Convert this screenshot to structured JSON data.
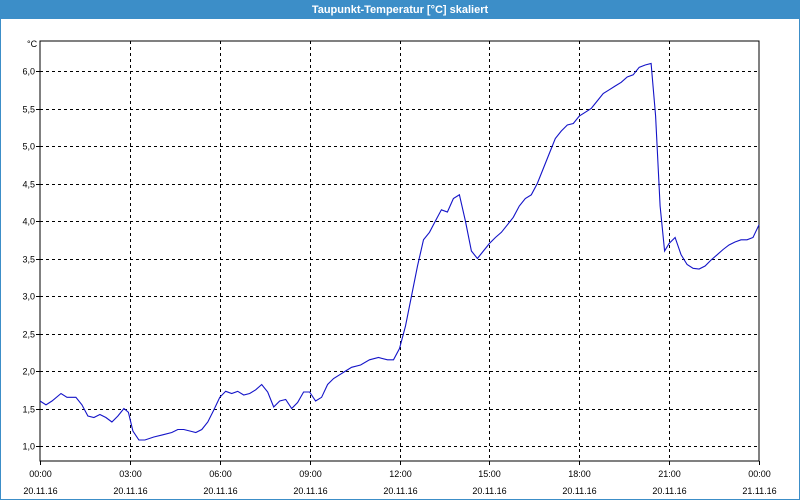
{
  "window": {
    "title": "Taupunkt-Temperatur [°C] skaliert"
  },
  "chart_data": {
    "type": "line",
    "title": "Taupunkt-Temperatur [°C] skaliert",
    "ylabel": "°C",
    "xlabel": "",
    "ylim": [
      0.8,
      6.4
    ],
    "xlim": [
      0,
      24
    ],
    "grid": true,
    "line_color": "#1414c8",
    "y_ticks": [
      "1,0",
      "1,5",
      "2,0",
      "2,5",
      "3,0",
      "3,5",
      "4,0",
      "4,5",
      "5,0",
      "5,5",
      "6,0"
    ],
    "y_tick_values": [
      1.0,
      1.5,
      2.0,
      2.5,
      3.0,
      3.5,
      4.0,
      4.5,
      5.0,
      5.5,
      6.0
    ],
    "x_tick_values": [
      0,
      3,
      6,
      9,
      12,
      15,
      18,
      21,
      24
    ],
    "x_ticks": [
      {
        "time": "00:00",
        "date": "20.11.16"
      },
      {
        "time": "03:00",
        "date": "20.11.16"
      },
      {
        "time": "06:00",
        "date": "20.11.16"
      },
      {
        "time": "09:00",
        "date": "20.11.16"
      },
      {
        "time": "12:00",
        "date": "20.11.16"
      },
      {
        "time": "15:00",
        "date": "20.11.16"
      },
      {
        "time": "18:00",
        "date": "20.11.16"
      },
      {
        "time": "21:00",
        "date": "20.11.16"
      },
      {
        "time": "00:00",
        "date": "21.11.16"
      }
    ],
    "series": [
      {
        "x": [
          0.0,
          0.2,
          0.4,
          0.7,
          0.9,
          1.2,
          1.4,
          1.6,
          1.8,
          2.0,
          2.2,
          2.4,
          2.6,
          2.8,
          2.95,
          3.1,
          3.3,
          3.5,
          3.8,
          4.1,
          4.4,
          4.6,
          4.8,
          5.0,
          5.2,
          5.4,
          5.6,
          5.8,
          6.0,
          6.2,
          6.4,
          6.6,
          6.8,
          7.0,
          7.2,
          7.4,
          7.6,
          7.8,
          8.0,
          8.2,
          8.4,
          8.6,
          8.8,
          9.0,
          9.2,
          9.4,
          9.6,
          9.8,
          10.0,
          10.2,
          10.4,
          10.7,
          11.0,
          11.3,
          11.6,
          11.8,
          12.0,
          12.2,
          12.4,
          12.6,
          12.8,
          13.0,
          13.2,
          13.4,
          13.6,
          13.8,
          14.0,
          14.2,
          14.4,
          14.6,
          14.8,
          15.0,
          15.2,
          15.4,
          15.6,
          15.8,
          16.0,
          16.2,
          16.4,
          16.6,
          16.8,
          17.0,
          17.2,
          17.4,
          17.6,
          17.8,
          18.0,
          18.2,
          18.4,
          18.6,
          18.8,
          19.0,
          19.2,
          19.4,
          19.6,
          19.8,
          20.0,
          20.2,
          20.4,
          20.55,
          20.7,
          20.85,
          21.0,
          21.2,
          21.4,
          21.6,
          21.8,
          22.0,
          22.2,
          22.4,
          22.6,
          22.8,
          23.0,
          23.2,
          23.4,
          23.6,
          23.8,
          24.0
        ],
        "y": [
          1.6,
          1.55,
          1.6,
          1.7,
          1.65,
          1.65,
          1.55,
          1.4,
          1.38,
          1.42,
          1.38,
          1.32,
          1.4,
          1.5,
          1.45,
          1.2,
          1.08,
          1.08,
          1.12,
          1.15,
          1.18,
          1.22,
          1.22,
          1.2,
          1.18,
          1.22,
          1.32,
          1.48,
          1.65,
          1.73,
          1.7,
          1.73,
          1.68,
          1.7,
          1.75,
          1.82,
          1.72,
          1.52,
          1.6,
          1.62,
          1.5,
          1.58,
          1.72,
          1.72,
          1.6,
          1.65,
          1.82,
          1.9,
          1.95,
          2.0,
          2.05,
          2.08,
          2.15,
          2.18,
          2.15,
          2.15,
          2.3,
          2.6,
          3.0,
          3.4,
          3.75,
          3.85,
          4.0,
          4.15,
          4.12,
          4.3,
          4.35,
          4.0,
          3.6,
          3.5,
          3.6,
          3.7,
          3.78,
          3.85,
          3.95,
          4.05,
          4.2,
          4.3,
          4.35,
          4.5,
          4.7,
          4.9,
          5.1,
          5.2,
          5.28,
          5.3,
          5.4,
          5.45,
          5.5,
          5.6,
          5.7,
          5.75,
          5.8,
          5.85,
          5.92,
          5.95,
          6.05,
          6.08,
          6.1,
          5.4,
          4.2,
          3.6,
          3.7,
          3.78,
          3.55,
          3.42,
          3.37,
          3.36,
          3.4,
          3.48,
          3.55,
          3.62,
          3.68,
          3.72,
          3.75,
          3.75,
          3.78,
          3.95
        ]
      }
    ]
  }
}
